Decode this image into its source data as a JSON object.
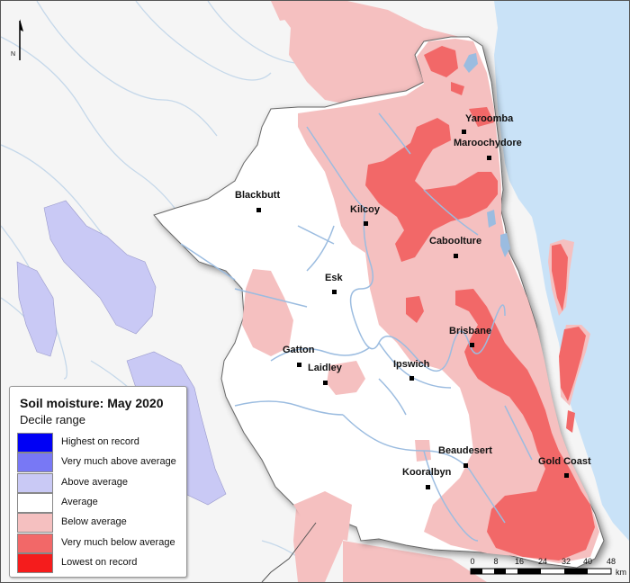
{
  "legend": {
    "title": "Soil moisture: May 2020",
    "subtitle": "Decile range",
    "items": [
      {
        "label": "Highest on record",
        "color": "#0000f5"
      },
      {
        "label": "Very much above average",
        "color": "#7878f5"
      },
      {
        "label": "Above average",
        "color": "#c9c9f5"
      },
      {
        "label": "Average",
        "color": "#ffffff"
      },
      {
        "label": "Below average",
        "color": "#f5c0c0"
      },
      {
        "label": "Very much below average",
        "color": "#f26868"
      },
      {
        "label": "Lowest on record",
        "color": "#f51c1c"
      }
    ]
  },
  "towns": [
    {
      "name": "Yaroomba"
    },
    {
      "name": "Maroochydore"
    },
    {
      "name": "Blackbutt"
    },
    {
      "name": "Kilcoy"
    },
    {
      "name": "Caboolture"
    },
    {
      "name": "Esk"
    },
    {
      "name": "Brisbane"
    },
    {
      "name": "Gatton"
    },
    {
      "name": "Laidley"
    },
    {
      "name": "Ipswich"
    },
    {
      "name": "Beaudesert"
    },
    {
      "name": "Gold Coast"
    },
    {
      "name": "Kooralbyn"
    }
  ],
  "scale_bar": {
    "ticks": [
      "0",
      "8",
      "16",
      "24",
      "32",
      "40",
      "48"
    ],
    "unit": "km"
  },
  "north_arrow": {
    "label": "N"
  },
  "colors": {
    "ocean": "#c9e2f7",
    "river": "#9bbce0",
    "outside": "#f5f5f5"
  }
}
